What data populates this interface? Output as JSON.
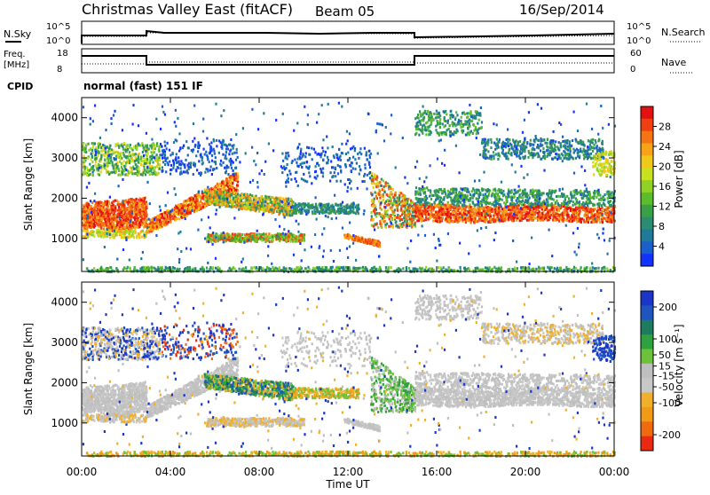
{
  "header": {
    "title": "Christmas Valley East (fitACF)",
    "beam": "Beam 05",
    "date": "16/Sep/2014"
  },
  "sky_panel": {
    "left_label": "N.Sky",
    "right_label": "N.Search",
    "left_ticks": [
      "10^5",
      "10^0"
    ],
    "right_ticks": [
      "10^5",
      "10^0"
    ]
  },
  "freq_panel": {
    "left_label_1": "Freq.",
    "left_label_2": "[MHz]",
    "right_label": "Nave",
    "left_ticks": [
      "18",
      "8"
    ],
    "right_ticks": [
      "60",
      "0"
    ]
  },
  "cpid": {
    "label": "CPID",
    "value": "normal (fast) 151 IF"
  },
  "colors": {
    "power_scale": [
      "#1432ff",
      "#1a5fcc",
      "#1f7a9a",
      "#2b8c70",
      "#3aa045",
      "#5bbd2c",
      "#8fd224",
      "#c8e01e",
      "#f0c81a",
      "#f8a316",
      "#f57514",
      "#f04012",
      "#e51010"
    ],
    "velocity_scale": [
      "#1a35c8",
      "#1f55c0",
      "#1d7b5f",
      "#2fa13e",
      "#6cc23a",
      "#bfbfbf",
      "#c8c8c8",
      "#f0b02a",
      "#f09a18",
      "#f06a10",
      "#ea2a10"
    ]
  },
  "chart_data": [
    {
      "type": "heatmap",
      "quantity": "power",
      "x_ticks": [
        "00:00",
        "04:00",
        "08:00",
        "12:00",
        "16:00",
        "20:00",
        "00:00"
      ],
      "x_range": [
        "00:00",
        "24:00"
      ],
      "ylabel": "Slant Range [km]",
      "y_ticks": [
        1000,
        2000,
        3000,
        4000
      ],
      "y_range": [
        180,
        4500
      ],
      "colorbar_label": "Power [dB]",
      "colorbar_ticks": [
        4,
        8,
        12,
        16,
        20,
        24,
        28
      ],
      "colorbar_range": [
        0,
        32
      ]
    },
    {
      "type": "heatmap",
      "quantity": "velocity",
      "x_ticks": [
        "00:00",
        "04:00",
        "08:00",
        "12:00",
        "16:00",
        "20:00",
        "00:00"
      ],
      "x_range": [
        "00:00",
        "24:00"
      ],
      "xlabel": "Time UT",
      "ylabel": "Slant Range [km]",
      "y_ticks": [
        1000,
        2000,
        3000,
        4000
      ],
      "y_range": [
        180,
        4500
      ],
      "colorbar_label": "Velocity [m s⁻¹]",
      "colorbar_ticks": [
        200,
        100,
        50,
        15,
        -15,
        -50,
        -100,
        -200
      ],
      "colorbar_range": [
        -250,
        250
      ]
    }
  ]
}
